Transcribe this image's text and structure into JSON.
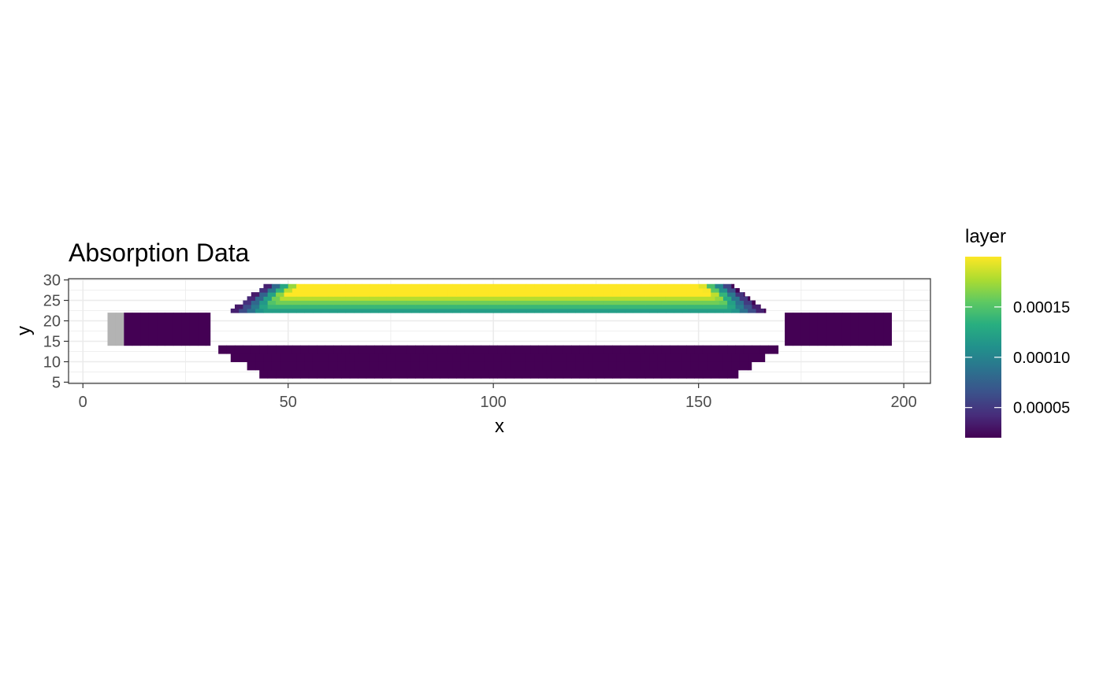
{
  "chart_data": {
    "type": "heatmap",
    "title": "Absorption Data",
    "xlabel": "x",
    "ylabel": "y",
    "xlim": [
      -3.5,
      206.5
    ],
    "ylim": [
      4.7,
      30.3
    ],
    "x_ticks": [
      0,
      50,
      100,
      150,
      200
    ],
    "y_ticks": [
      5,
      10,
      15,
      20,
      25,
      30
    ],
    "grid": true,
    "cell_size": 2,
    "na_color": "#b3b3b3",
    "colormap": "viridis",
    "legend": {
      "title": "layer",
      "placement": "right",
      "range": [
        2e-05,
        0.0002
      ],
      "ticks": [
        5e-05,
        0.0001,
        0.00015
      ],
      "tick_labels": [
        "0.00005",
        "0.00010",
        "0.00015"
      ]
    },
    "regions": [
      {
        "name": "na-block",
        "x": [
          6,
          10
        ],
        "y": [
          14,
          22
        ],
        "value": null
      },
      {
        "name": "input-channel",
        "x": [
          10,
          31
        ],
        "y": [
          14,
          22
        ],
        "value": 2e-05
      },
      {
        "name": "output-channel",
        "x": [
          171,
          197
        ],
        "y": [
          14,
          22
        ],
        "value": 2e-05
      },
      {
        "name": "lower-arm",
        "x_bottom": [
          45,
          158
        ],
        "x_top": [
          31,
          171
        ],
        "y": [
          6,
          14
        ],
        "value": 2e-05
      },
      {
        "name": "upper-arm",
        "x_top": [
          45,
          158
        ],
        "x_bottom": [
          35,
          167
        ],
        "y": [
          22,
          29
        ],
        "profile": [
          {
            "y": [
              22,
              23
            ],
            "value": 0.00012
          },
          {
            "y": [
              23,
              24
            ],
            "value": 0.00014
          },
          {
            "y": [
              24,
              25
            ],
            "value": 0.00016
          },
          {
            "y": [
              25,
              26
            ],
            "value": 0.00018
          },
          {
            "y": [
              26,
              29
            ],
            "value": 0.0002
          }
        ]
      }
    ]
  }
}
